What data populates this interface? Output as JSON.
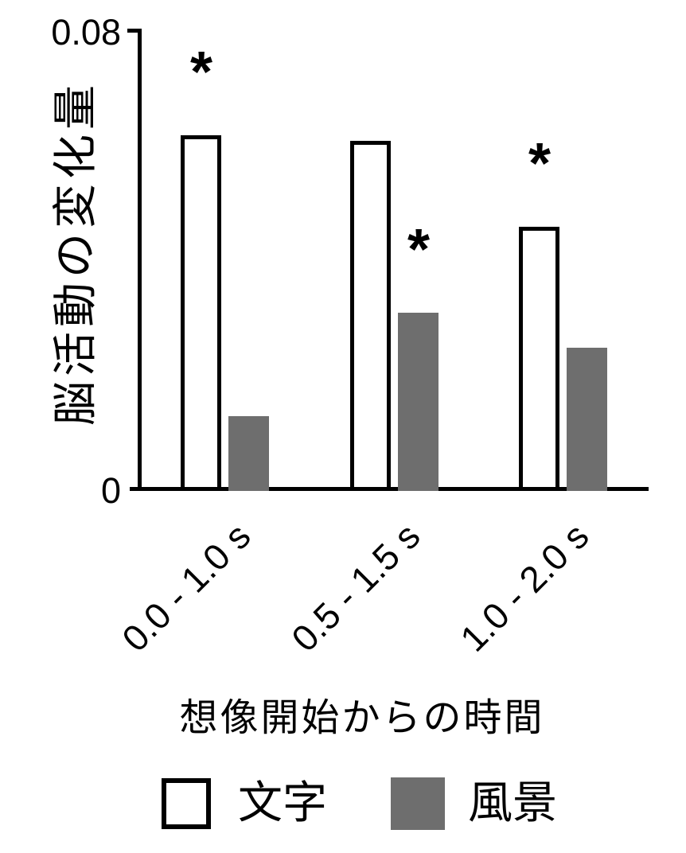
{
  "figure": {
    "y_tick_top": "0.08",
    "y_tick_bottom": "0",
    "y_axis_label": "脳活動の変化量",
    "x_axis_label": "想像開始からの時間"
  },
  "chart_data": {
    "type": "bar",
    "title": "",
    "xlabel": "想像開始からの時間",
    "ylabel": "脳活動の変化量",
    "categories": [
      "0.0 - 1.0 s",
      "0.5 - 1.5 s",
      "1.0 - 2.0 s"
    ],
    "series": [
      {
        "name": "文字",
        "color": "#ffffff",
        "border_color": "#000000",
        "values": [
          0.062,
          0.061,
          0.046
        ]
      },
      {
        "name": "風景",
        "color": "#6e6e6e",
        "border_color": null,
        "values": [
          0.013,
          0.031,
          0.025
        ]
      }
    ],
    "ylim": [
      0,
      0.08
    ],
    "yticks": [
      "0.08",
      "0"
    ],
    "grid": false,
    "legend_position": "bottom",
    "annotations": [
      {
        "symbol": "*",
        "category_index": 0,
        "series_index": 0,
        "meaning": "significant"
      },
      {
        "symbol": "*",
        "category_index": 1,
        "series_index": 1,
        "meaning": "significant"
      },
      {
        "symbol": "*",
        "category_index": 2,
        "series_index": 0,
        "meaning": "significant"
      }
    ]
  }
}
